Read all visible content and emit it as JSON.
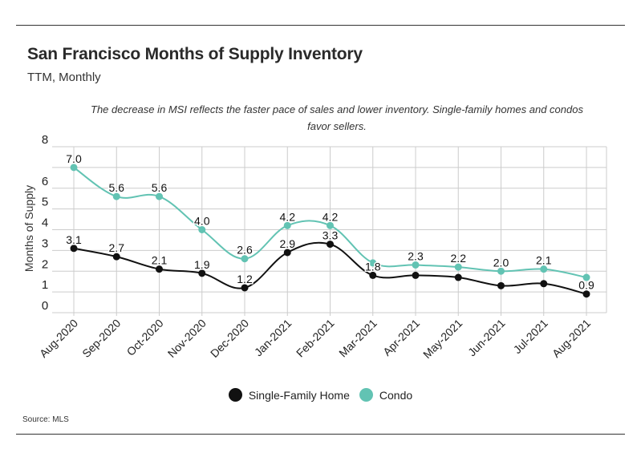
{
  "header": {
    "title": "San Francisco Months of Supply Inventory",
    "subtitle": "TTM, Monthly"
  },
  "annotation": "The decrease in MSI reflects the faster pace of sales and lower inventory. Single-family homes and condos favor sellers.",
  "source": "Source:  MLS",
  "colors": {
    "single_family": "#111111",
    "condo": "#62c3b3",
    "grid": "#cccccc"
  },
  "chart_data": {
    "type": "line",
    "title": "San Francisco Months of Supply Inventory",
    "subtitle": "TTM, Monthly",
    "xlabel": "",
    "ylabel": "Months of Supply",
    "ylim": [
      0,
      8
    ],
    "yticks": [
      0,
      1,
      2,
      3,
      4,
      5,
      6,
      8
    ],
    "grid": true,
    "legend_position": "bottom",
    "categories": [
      "Aug-2020",
      "Sep-2020",
      "Oct-2020",
      "Nov-2020",
      "Dec-2020",
      "Jan-2021",
      "Feb-2021",
      "Mar-2021",
      "Apr-2021",
      "May-2021",
      "Jun-2021",
      "Jul-2021",
      "Aug-2021"
    ],
    "series": [
      {
        "name": "Single-Family Home",
        "values": [
          3.1,
          2.7,
          2.1,
          1.9,
          1.2,
          2.9,
          3.3,
          1.8,
          1.8,
          1.7,
          1.3,
          1.4,
          0.9
        ],
        "labels": [
          "3.1",
          "2.7",
          "2.1",
          "1.9",
          "1.2",
          "2.9",
          "3.3",
          "1.8",
          "",
          "",
          "",
          "",
          "0.9"
        ]
      },
      {
        "name": "Condo",
        "values": [
          7.0,
          5.6,
          5.6,
          4.0,
          2.6,
          4.2,
          4.2,
          2.4,
          2.3,
          2.2,
          2.0,
          2.1,
          1.7
        ],
        "labels": [
          "7.0",
          "5.6",
          "5.6",
          "4.0",
          "2.6",
          "4.2",
          "4.2",
          "",
          "2.3",
          "2.2",
          "2.0",
          "2.1",
          ""
        ]
      }
    ]
  }
}
